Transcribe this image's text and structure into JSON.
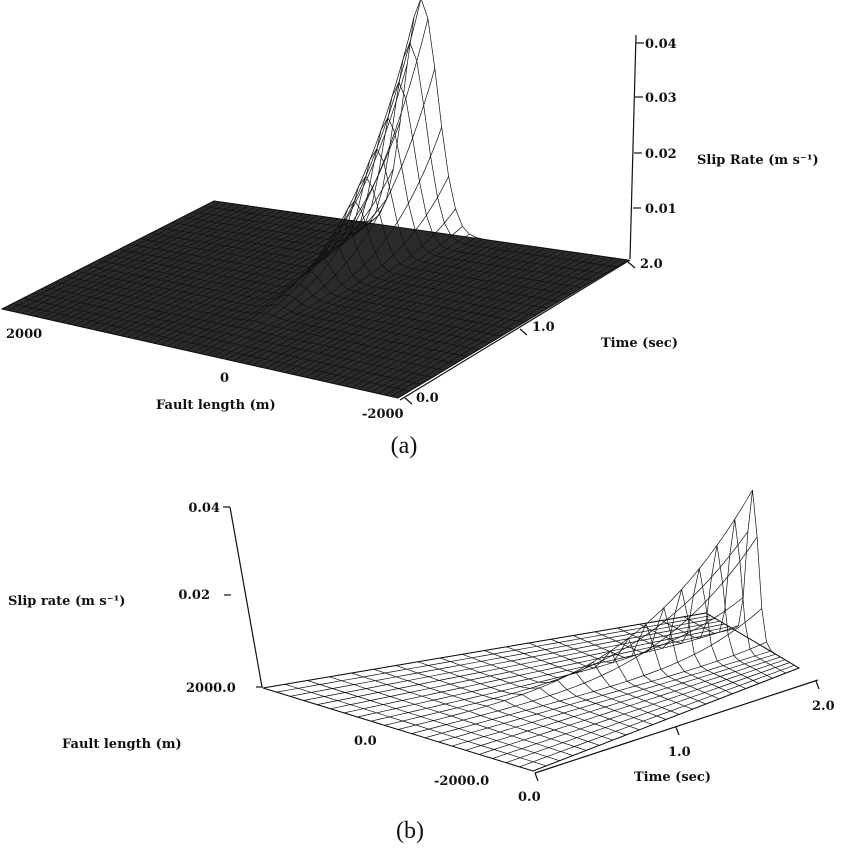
{
  "chart_data": [
    {
      "type": "surface",
      "panel": "(a)",
      "zlabel": "Slip Rate (m s⁻¹)",
      "xlabel": "Fault length (m)",
      "ylabel": "Time (sec)",
      "x_ticks": [
        "2000",
        "0",
        "-2000"
      ],
      "y_ticks": [
        "0.0",
        "1.0",
        "2.0"
      ],
      "z_ticks": [
        "0.01",
        "0.02",
        "0.03",
        "0.04"
      ],
      "xlim": [
        -2000,
        2000
      ],
      "ylim": [
        0.0,
        2.0
      ],
      "zlim": [
        0,
        0.045
      ],
      "peak": {
        "x": 0,
        "y": 2.0,
        "z": 0.043
      }
    },
    {
      "type": "surface",
      "panel": "(b)",
      "zlabel": "Slip rate (m s⁻¹)",
      "xlabel": "Fault length (m)",
      "ylabel": "Time (sec)",
      "x_ticks": [
        "2000.0",
        "0.0",
        "-2000.0"
      ],
      "y_ticks": [
        "0.0",
        "1.0",
        "2.0"
      ],
      "z_ticks": [
        "0.02",
        "0.04"
      ],
      "xlim": [
        -2000,
        2000
      ],
      "ylim": [
        0.0,
        2.0
      ],
      "zlim": [
        0,
        0.04
      ],
      "peak": {
        "x": 0,
        "y": 2.0,
        "z": 0.035
      }
    }
  ]
}
